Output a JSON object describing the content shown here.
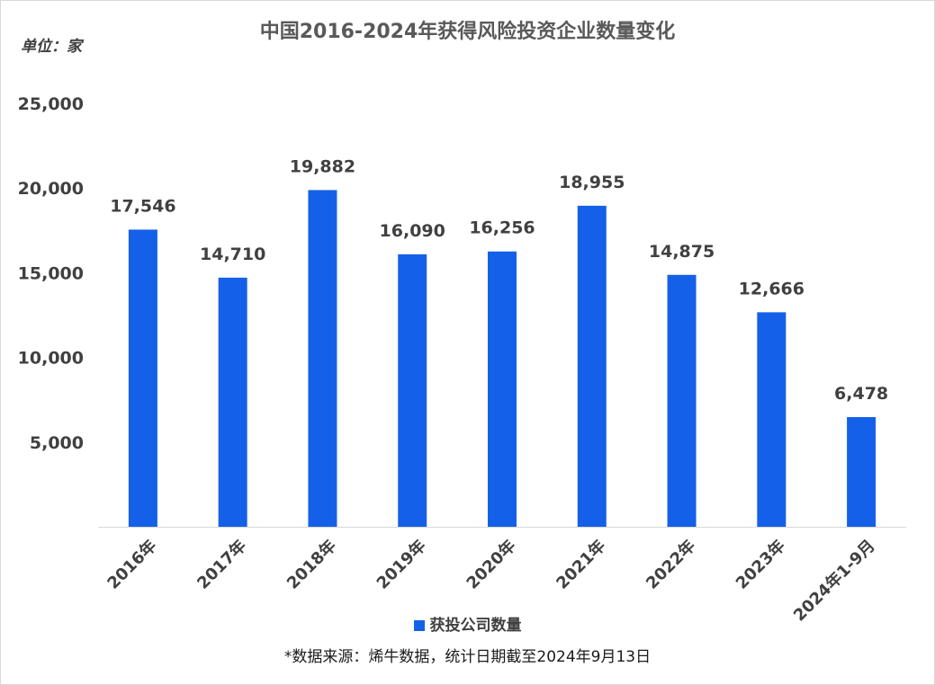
{
  "title": "中国2016-2024年获得风险投资企业数量变化",
  "unit_label": "单位：家",
  "legend_label": "获投公司数量",
  "source_note": "*数据来源：烯牛数据，统计日期截至2024年9月13日",
  "colors": {
    "bar": "#1560e8",
    "text": "#404040",
    "axis": "#d9d9d9"
  },
  "chart_data": {
    "type": "bar",
    "title": "中国2016-2024年获得风险投资企业数量变化",
    "ylabel": "单位：家",
    "xlabel": "",
    "categories": [
      "2016年",
      "2017年",
      "2018年",
      "2019年",
      "2020年",
      "2021年",
      "2022年",
      "2023年",
      "2024年1-9月"
    ],
    "series": [
      {
        "name": "获投公司数量",
        "values": [
          17546,
          14710,
          19882,
          16090,
          16256,
          18955,
          14875,
          12666,
          6478
        ],
        "labels": [
          "17,546",
          "14,710",
          "19,882",
          "16,090",
          "16,256",
          "18,955",
          "14,875",
          "12,666",
          "6,478"
        ]
      }
    ],
    "yticks": [
      5000,
      10000,
      15000,
      20000,
      25000
    ],
    "ytick_labels": [
      "5,000",
      "10,000",
      "15,000",
      "20,000",
      "25,000"
    ],
    "ylim": [
      0,
      25000
    ],
    "grid": false,
    "legend_position": "bottom"
  }
}
